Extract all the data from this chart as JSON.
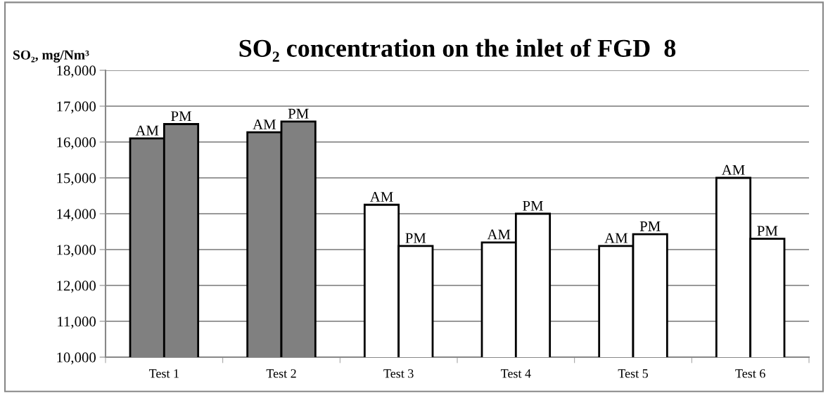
{
  "chart_data": {
    "type": "bar",
    "title": "SO₂ concentration on the inlet of FGD  8",
    "ylabel": "SO₂, mg/Nm³",
    "categories": [
      "Test 1",
      "Test 2",
      "Test 3",
      "Test 4",
      "Test 5",
      "Test 6"
    ],
    "series": [
      {
        "name": "AM",
        "colors": [
          "#808080",
          "#808080",
          "#ffffff",
          "#ffffff",
          "#ffffff",
          "#ffffff"
        ],
        "values": [
          16100,
          16270,
          14250,
          13200,
          13100,
          15000
        ]
      },
      {
        "name": "PM",
        "colors": [
          "#808080",
          "#808080",
          "#ffffff",
          "#ffffff",
          "#ffffff",
          "#ffffff"
        ],
        "values": [
          16500,
          16570,
          13100,
          14000,
          13430,
          13300
        ]
      }
    ],
    "ylim": [
      10000,
      18000
    ],
    "yticks": [
      {
        "value": 10000,
        "label": "10,000"
      },
      {
        "value": 11000,
        "label": "11,000"
      },
      {
        "value": 12000,
        "label": "12,000"
      },
      {
        "value": 13000,
        "label": "13,000"
      },
      {
        "value": 14000,
        "label": "14,000"
      },
      {
        "value": 15000,
        "label": "15,000"
      },
      {
        "value": 16000,
        "label": "16,000"
      },
      {
        "value": 17000,
        "label": "17,000"
      },
      {
        "value": 18000,
        "label": "18,000"
      }
    ],
    "grid": "y",
    "legend": false
  }
}
